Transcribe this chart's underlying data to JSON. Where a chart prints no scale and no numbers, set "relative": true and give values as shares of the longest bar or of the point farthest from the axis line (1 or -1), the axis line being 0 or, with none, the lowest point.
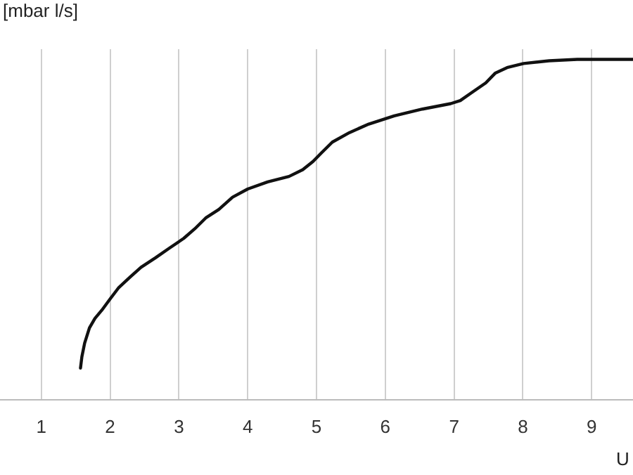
{
  "chart_data": {
    "type": "line",
    "xlabel": "U",
    "ylabel": "[mbar l/s]",
    "relative": true,
    "x": [
      1.57,
      1.59,
      1.63,
      1.7,
      1.78,
      1.88,
      2.0,
      2.12,
      2.29,
      2.45,
      2.66,
      2.86,
      3.07,
      3.23,
      3.39,
      3.58,
      3.78,
      4.0,
      4.29,
      4.6,
      4.8,
      4.95,
      5.07,
      5.23,
      5.48,
      5.76,
      6.13,
      6.54,
      6.95,
      7.09,
      7.26,
      7.46,
      7.6,
      7.77,
      8.01,
      8.38,
      8.79,
      9.1,
      9.6
    ],
    "series": [
      {
        "color": "#111111",
        "values": [
          0.093,
          0.126,
          0.166,
          0.211,
          0.239,
          0.263,
          0.296,
          0.328,
          0.36,
          0.389,
          0.417,
          0.445,
          0.474,
          0.502,
          0.534,
          0.559,
          0.595,
          0.619,
          0.64,
          0.656,
          0.676,
          0.7,
          0.725,
          0.757,
          0.785,
          0.81,
          0.834,
          0.854,
          0.87,
          0.879,
          0.903,
          0.931,
          0.96,
          0.976,
          0.988,
          0.996,
          1,
          1,
          1
        ]
      }
    ],
    "xlim": [
      0.4,
      9.6
    ],
    "xticks": [
      1,
      2,
      3,
      4,
      5,
      6,
      7,
      8,
      9
    ],
    "grid": "x",
    "legend": false,
    "marker": "none",
    "line_style": "solid"
  }
}
